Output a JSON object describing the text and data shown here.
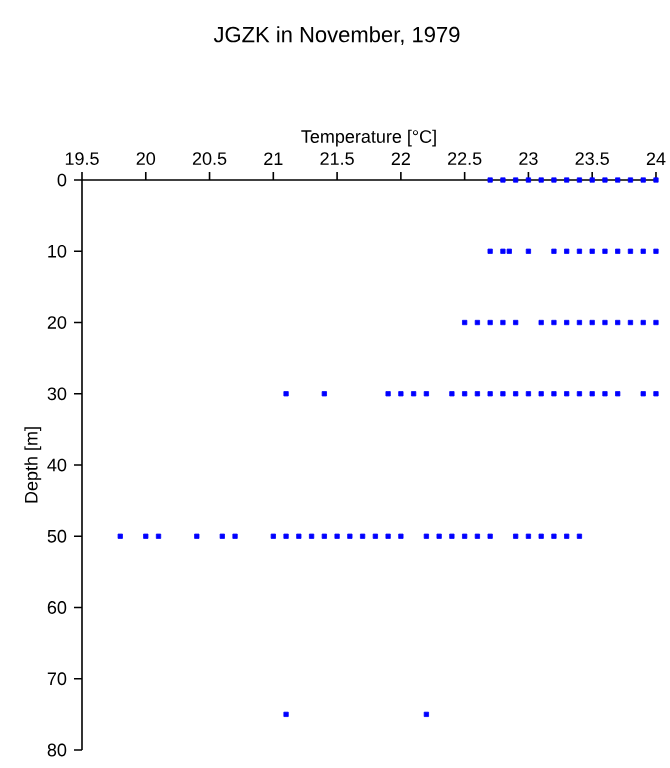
{
  "chart_data": {
    "type": "scatter",
    "title": "JGZK in November, 1979",
    "xlabel": "Temperature [°C]",
    "ylabel": "Depth [m]",
    "x": [
      22.7,
      22.8,
      22.9,
      23.0,
      23.1,
      23.2,
      23.3,
      23.4,
      23.5,
      23.6,
      23.7,
      23.8,
      23.9,
      24.0,
      22.7,
      22.8,
      22.85,
      23.0,
      23.2,
      23.3,
      23.4,
      23.5,
      23.6,
      23.7,
      23.8,
      23.9,
      24.0,
      22.5,
      22.6,
      22.7,
      22.8,
      22.9,
      23.1,
      23.2,
      23.3,
      23.4,
      23.5,
      23.6,
      23.7,
      23.8,
      23.9,
      24.0,
      21.1,
      21.4,
      21.9,
      22.0,
      22.1,
      22.2,
      22.4,
      22.5,
      22.6,
      22.7,
      22.8,
      22.9,
      23.0,
      23.1,
      23.2,
      23.3,
      23.4,
      23.5,
      23.6,
      23.7,
      23.9,
      24.0,
      19.8,
      20.0,
      20.1,
      20.4,
      20.6,
      20.7,
      21.0,
      21.1,
      21.2,
      21.3,
      21.4,
      21.5,
      21.6,
      21.7,
      21.8,
      21.9,
      22.0,
      22.2,
      22.3,
      22.4,
      22.5,
      22.6,
      22.7,
      22.9,
      23.0,
      23.1,
      23.2,
      23.3,
      23.4,
      21.1,
      22.2
    ],
    "values": [
      0,
      0,
      0,
      0,
      0,
      0,
      0,
      0,
      0,
      0,
      0,
      0,
      0,
      0,
      10,
      10,
      10,
      10,
      10,
      10,
      10,
      10,
      10,
      10,
      10,
      10,
      10,
      20,
      20,
      20,
      20,
      20,
      20,
      20,
      20,
      20,
      20,
      20,
      20,
      20,
      20,
      20,
      30,
      30,
      30,
      30,
      30,
      30,
      30,
      30,
      30,
      30,
      30,
      30,
      30,
      30,
      30,
      30,
      30,
      30,
      30,
      30,
      30,
      30,
      50,
      50,
      50,
      50,
      50,
      50,
      50,
      50,
      50,
      50,
      50,
      50,
      50,
      50,
      50,
      50,
      50,
      50,
      50,
      50,
      50,
      50,
      50,
      50,
      50,
      50,
      50,
      50,
      50,
      75,
      75
    ],
    "color": "#0000ff",
    "marker": "square",
    "xlim": [
      19.5,
      24
    ],
    "xticks": [
      19.5,
      20,
      20.5,
      21,
      21.5,
      22,
      22.5,
      23,
      23.5,
      24
    ],
    "ylim": [
      80,
      0
    ],
    "yticks": [
      0,
      10,
      20,
      30,
      40,
      50,
      60,
      70,
      80
    ]
  }
}
